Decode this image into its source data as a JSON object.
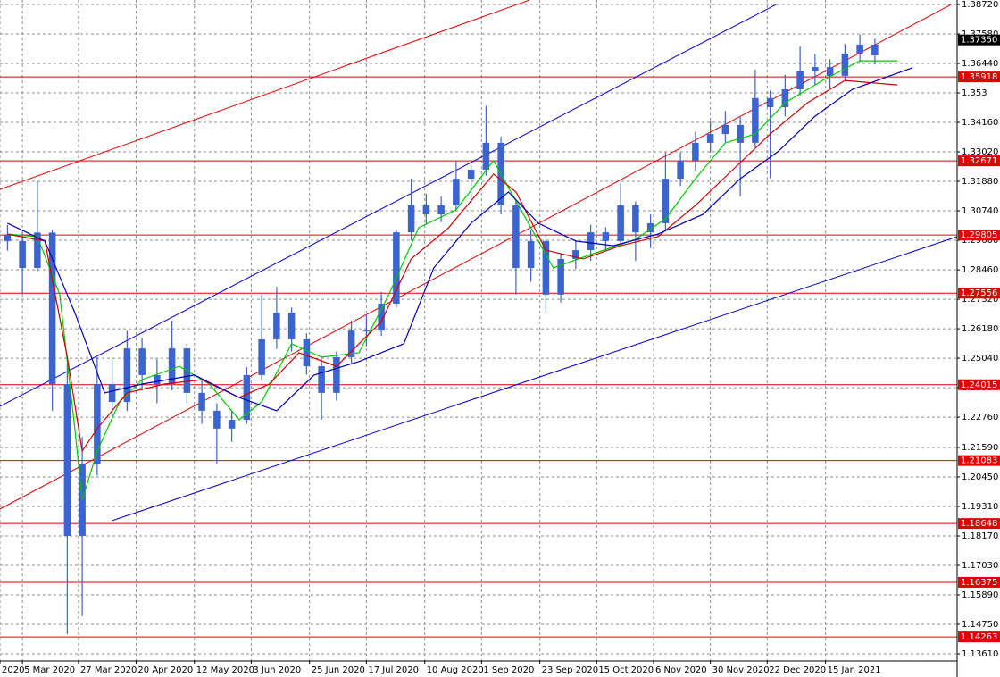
{
  "chart_data": {
    "type": "candlestick",
    "color": "#3c64d0",
    "open": [
      1.298,
      1.2957,
      1.2853,
      1.299,
      1.2404,
      1.1817,
      1.2093,
      1.2404,
      1.2335,
      1.2542,
      1.2439,
      1.2404,
      1.2542,
      1.237,
      1.2301,
      1.2232,
      1.2266,
      1.2439,
      1.2577,
      1.268,
      1.2577,
      1.2473,
      1.237,
      1.2508,
      1.2611,
      1.2611,
      1.2715,
      1.2991,
      1.3095,
      1.306,
      1.3095,
      1.3198,
      1.3233,
      1.3337,
      1.3095,
      1.2853,
      1.2957,
      1.275,
      1.2888,
      1.2922,
      1.2991,
      1.2957,
      1.3095,
      1.2991,
      1.3026,
      1.3198,
      1.3268,
      1.3337,
      1.3371,
      1.3406,
      1.3337,
      1.351,
      1.3475,
      1.3544,
      1.3613,
      1.363,
      1.3596,
      1.3682,
      1.3717
    ],
    "high": [
      1.302,
      1.299,
      1.3188,
      1.3,
      1.248,
      1.22,
      1.2508,
      1.25,
      1.261,
      1.258,
      1.25,
      1.265,
      1.256,
      1.242,
      1.233,
      1.23,
      1.247,
      1.275,
      1.278,
      1.27,
      1.26,
      1.25,
      1.253,
      1.265,
      1.267,
      1.276,
      1.3,
      1.3198,
      1.314,
      1.313,
      1.3268,
      1.325,
      1.348,
      1.336,
      1.311,
      1.3,
      1.298,
      1.291,
      1.296,
      1.302,
      1.301,
      1.318,
      1.311,
      1.306,
      1.33,
      1.33,
      1.338,
      1.342,
      1.346,
      1.344,
      1.362,
      1.354,
      1.36,
      1.371,
      1.368,
      1.366,
      1.372,
      1.3755,
      1.374
    ],
    "low": [
      1.292,
      1.275,
      1.284,
      1.23,
      1.1437,
      1.1506,
      1.205,
      1.228,
      1.23,
      1.238,
      1.233,
      1.238,
      1.233,
      1.225,
      1.2093,
      1.218,
      1.225,
      1.242,
      1.254,
      1.253,
      1.244,
      1.2266,
      1.234,
      1.248,
      1.255,
      1.259,
      1.27,
      1.296,
      1.302,
      1.303,
      1.308,
      1.31,
      1.321,
      1.306,
      1.275,
      1.28,
      1.268,
      1.272,
      1.285,
      1.288,
      1.292,
      1.294,
      1.288,
      1.293,
      1.3,
      1.317,
      1.323,
      1.33,
      1.334,
      1.313,
      1.332,
      1.32,
      1.344,
      1.352,
      1.356,
      1.355,
      1.358,
      1.365,
      1.364
    ],
    "close": [
      1.2957,
      1.2853,
      1.299,
      1.2404,
      1.1817,
      1.2093,
      1.2404,
      1.2335,
      1.2542,
      1.2439,
      1.2404,
      1.2542,
      1.237,
      1.2301,
      1.2232,
      1.2266,
      1.2439,
      1.2577,
      1.268,
      1.2577,
      1.2473,
      1.237,
      1.2508,
      1.2611,
      1.2611,
      1.2715,
      1.2991,
      1.3095,
      1.306,
      1.3095,
      1.3198,
      1.3233,
      1.3337,
      1.3095,
      1.2853,
      1.2957,
      1.275,
      1.2888,
      1.2922,
      1.2991,
      1.2957,
      1.3095,
      1.2991,
      1.3026,
      1.3198,
      1.3268,
      1.3337,
      1.3371,
      1.3406,
      1.3337,
      1.351,
      1.3475,
      1.3544,
      1.3613,
      1.363,
      1.3596,
      1.3682,
      1.3717,
      1.3675
    ],
    "indicators": [
      {
        "color": "#00c800",
        "x": [
          0,
          2,
          3.5,
          4.5,
          5,
          6,
          7.5,
          9,
          11.5,
          13.5,
          15.5,
          17,
          19,
          21,
          23.5,
          25.5,
          27.5,
          30,
          32.5,
          34.5,
          36.5,
          39,
          42,
          44,
          46,
          48,
          50,
          52,
          54.5,
          57,
          59.5
        ],
        "values": [
          1.2984,
          1.2974,
          1.275,
          1.2232,
          1.1955,
          1.2145,
          1.2335,
          1.2421,
          1.2473,
          1.2404,
          1.2266,
          1.2335,
          1.256,
          1.2508,
          1.2525,
          1.275,
          1.3009,
          1.3078,
          1.3268,
          1.306,
          1.2853,
          1.2905,
          1.2964,
          1.3043,
          1.3198,
          1.3337,
          1.3371,
          1.3492,
          1.3578,
          1.3654,
          1.3654
        ]
      },
      {
        "color": "#d00000",
        "x": [
          0,
          2.5,
          4,
          5,
          6,
          8,
          10.5,
          13,
          15.5,
          17.5,
          19.5,
          22,
          25,
          27,
          29.5,
          32.5,
          34,
          36,
          38.5,
          41,
          43.5,
          46,
          48.5,
          51,
          53.5,
          56,
          59.5
        ],
        "values": [
          1.2984,
          1.2957,
          1.2508,
          1.2145,
          1.2232,
          1.237,
          1.2404,
          1.2421,
          1.2352,
          1.2404,
          1.2525,
          1.2473,
          1.2646,
          1.2888,
          1.3009,
          1.3216,
          1.3147,
          1.2922,
          1.2888,
          1.2939,
          1.2974,
          1.3095,
          1.3233,
          1.3371,
          1.3492,
          1.3578,
          1.3561
        ]
      },
      {
        "color": "#0000b4",
        "x": [
          0,
          2.5,
          4.5,
          6.5,
          9,
          12.5,
          15.5,
          18,
          20.5,
          23.5,
          26.5,
          28.5,
          31,
          33.5,
          35.5,
          38,
          40.5,
          43.5,
          46.5,
          49,
          51.5,
          54,
          56.5,
          60.5
        ],
        "values": [
          1.3026,
          1.2957,
          1.268,
          1.237,
          1.2404,
          1.2439,
          1.2352,
          1.2301,
          1.2439,
          1.2491,
          1.256,
          1.2853,
          1.3026,
          1.3147,
          1.3026,
          1.2957,
          1.2939,
          1.2984,
          1.306,
          1.3198,
          1.3302,
          1.344,
          1.3544,
          1.3627
        ]
      }
    ],
    "trendlines": [
      {
        "color": "#e00000",
        "x": [
          -0.5,
          34.9
        ],
        "values": [
          1.3157,
          1.3889
        ]
      },
      {
        "color": "#e00000",
        "x": [
          -0.5,
          63.1
        ],
        "values": [
          1.1921,
          1.3872
        ]
      },
      {
        "color": "#0000d0",
        "x": [
          -0.5,
          51.4
        ],
        "values": [
          1.2318,
          1.3872
        ]
      },
      {
        "color": "#0000d0",
        "x": [
          7.0,
          63.5
        ],
        "values": [
          1.1876,
          1.2974
        ]
      }
    ],
    "levels": [
      1.35918,
      1.32671,
      1.29805,
      1.27556,
      1.24015,
      1.21083,
      1.18648,
      1.16375,
      1.14263
    ],
    "level_color": "#e00000",
    "current_price": {
      "value": 1.3735,
      "label": "1.37350"
    },
    "xlim": [
      -0.5,
      63.5
    ],
    "xticks": [
      {
        "value": -0.5,
        "label": "2020"
      },
      {
        "value": 1,
        "label": "5 Mar 2020"
      },
      {
        "value": 4.75,
        "label": "27 Mar 2020"
      },
      {
        "value": 8.6,
        "label": "20 Apr 2020"
      },
      {
        "value": 12.5,
        "label": "12 May 2020"
      },
      {
        "value": 16.3,
        "label": "3 Jun 2020"
      },
      {
        "value": 20.2,
        "label": "25 Jun 2020"
      },
      {
        "value": 24,
        "label": "17 Jul 2020"
      },
      {
        "value": 27.9,
        "label": "10 Aug 2020"
      },
      {
        "value": 31.7,
        "label": "1 Sep 2020"
      },
      {
        "value": 35.6,
        "label": "23 Sep 2020"
      },
      {
        "value": 39.4,
        "label": "15 Oct 2020"
      },
      {
        "value": 43.2,
        "label": "6 Nov 2020"
      },
      {
        "value": 47,
        "label": "30 Nov 2020"
      },
      {
        "value": 50.8,
        "label": "22 Dec 2020"
      },
      {
        "value": 54.7,
        "label": "15 Jan 2021"
      }
    ],
    "ylim": [
      1.13334,
      1.38893
    ],
    "yticks": [
      {
        "value": 1.3872,
        "label": "1.38720"
      },
      {
        "value": 1.3758,
        "label": "1.37580"
      },
      {
        "value": 1.3644,
        "label": "1.36440"
      },
      1.353,
      {
        "value": 1.3416,
        "label": "1.34160"
      },
      {
        "value": 1.3302,
        "label": "1.33020"
      },
      {
        "value": 1.3188,
        "label": "1.31880"
      },
      {
        "value": 1.3074,
        "label": "1.30740"
      },
      {
        "value": 1.296,
        "label": "1.29600"
      },
      {
        "value": 1.2846,
        "label": "1.28460"
      },
      {
        "value": 1.2732,
        "label": "1.27320"
      },
      {
        "value": 1.2618,
        "label": "1.26180"
      },
      {
        "value": 1.2504,
        "label": "1.25040"
      },
      {
        "value": 1.239,
        "label": "1.23900"
      },
      {
        "value": 1.2276,
        "label": "1.22760"
      },
      {
        "value": 1.2159,
        "label": "1.21590"
      },
      {
        "value": 1.2045,
        "label": "1.20450"
      },
      {
        "value": 1.1931,
        "label": "1.19310"
      },
      {
        "value": 1.1817,
        "label": "1.18170"
      },
      {
        "value": 1.1703,
        "label": "1.17030"
      },
      {
        "value": 1.1589,
        "label": "1.15890"
      },
      {
        "value": 1.1475,
        "label": "1.14750"
      },
      {
        "value": 1.1361,
        "label": "1.13610"
      }
    ],
    "grid": true
  }
}
